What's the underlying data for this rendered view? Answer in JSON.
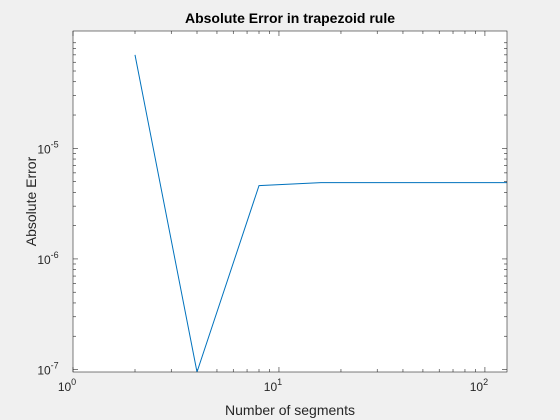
{
  "chart_data": {
    "type": "line",
    "title": "Absolute Error in trapezoid rule",
    "xlabel": "Number of segments",
    "ylabel": "Absolute Error",
    "x_scale": "log",
    "y_scale": "log",
    "xlim": [
      1,
      128
    ],
    "ylim": [
      9.5e-08,
      0.000115
    ],
    "x_ticks": [
      {
        "value": 1,
        "base": "10",
        "exp": "0"
      },
      {
        "value": 10,
        "base": "10",
        "exp": "1"
      },
      {
        "value": 100,
        "base": "10",
        "exp": "2"
      }
    ],
    "y_ticks": [
      {
        "value": 1e-07,
        "base": "10",
        "exp": "-7"
      },
      {
        "value": 1e-06,
        "base": "10",
        "exp": "-6"
      },
      {
        "value": 1e-05,
        "base": "10",
        "exp": "-5"
      }
    ],
    "grid": false,
    "legend": "none",
    "line_color": "#0072BD",
    "series": [
      {
        "x": [
          2,
          4,
          8,
          16,
          32,
          64,
          128
        ],
        "y": [
          7e-05,
          9.5e-08,
          4.6e-06,
          4.9e-06,
          4.9e-06,
          4.9e-06,
          4.9e-06
        ]
      }
    ]
  }
}
